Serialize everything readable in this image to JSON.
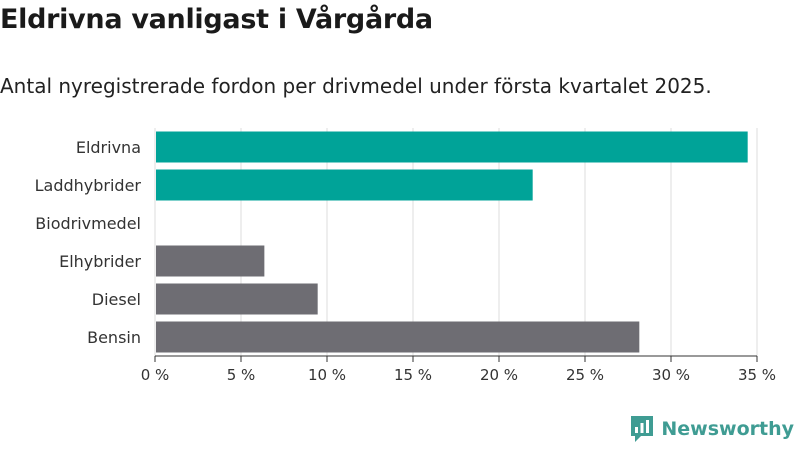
{
  "chart_data": {
    "type": "bar",
    "orientation": "horizontal",
    "title": "Eldrivna vanligast i Vårgårda",
    "subtitle": "Antal nyregistrerade fordon per drivmedel under första kvartalet 2025.",
    "categories": [
      "Eldrivna",
      "Laddhybrider",
      "Biodrivmedel",
      "Elhybrider",
      "Diesel",
      "Bensin"
    ],
    "values": [
      34.4,
      21.9,
      0,
      6.3,
      9.4,
      28.1
    ],
    "bar_colors": [
      "#00a398",
      "#00a398",
      "#00a398",
      "#6e6d73",
      "#6e6d73",
      "#6e6d73"
    ],
    "xlim": [
      0,
      35
    ],
    "x_ticks": [
      0,
      5,
      10,
      15,
      20,
      25,
      30,
      35
    ],
    "x_tick_labels": [
      "0 %",
      "5 %",
      "10 %",
      "15 %",
      "20 %",
      "25 %",
      "30 %",
      "35 %"
    ],
    "grid": true
  },
  "brand": {
    "name": "Newsworthy",
    "icon": "newsworthy-logo-icon",
    "color": "#3f9c93"
  },
  "colors": {
    "grid": "#dcdcdc",
    "axis": "#333333"
  }
}
